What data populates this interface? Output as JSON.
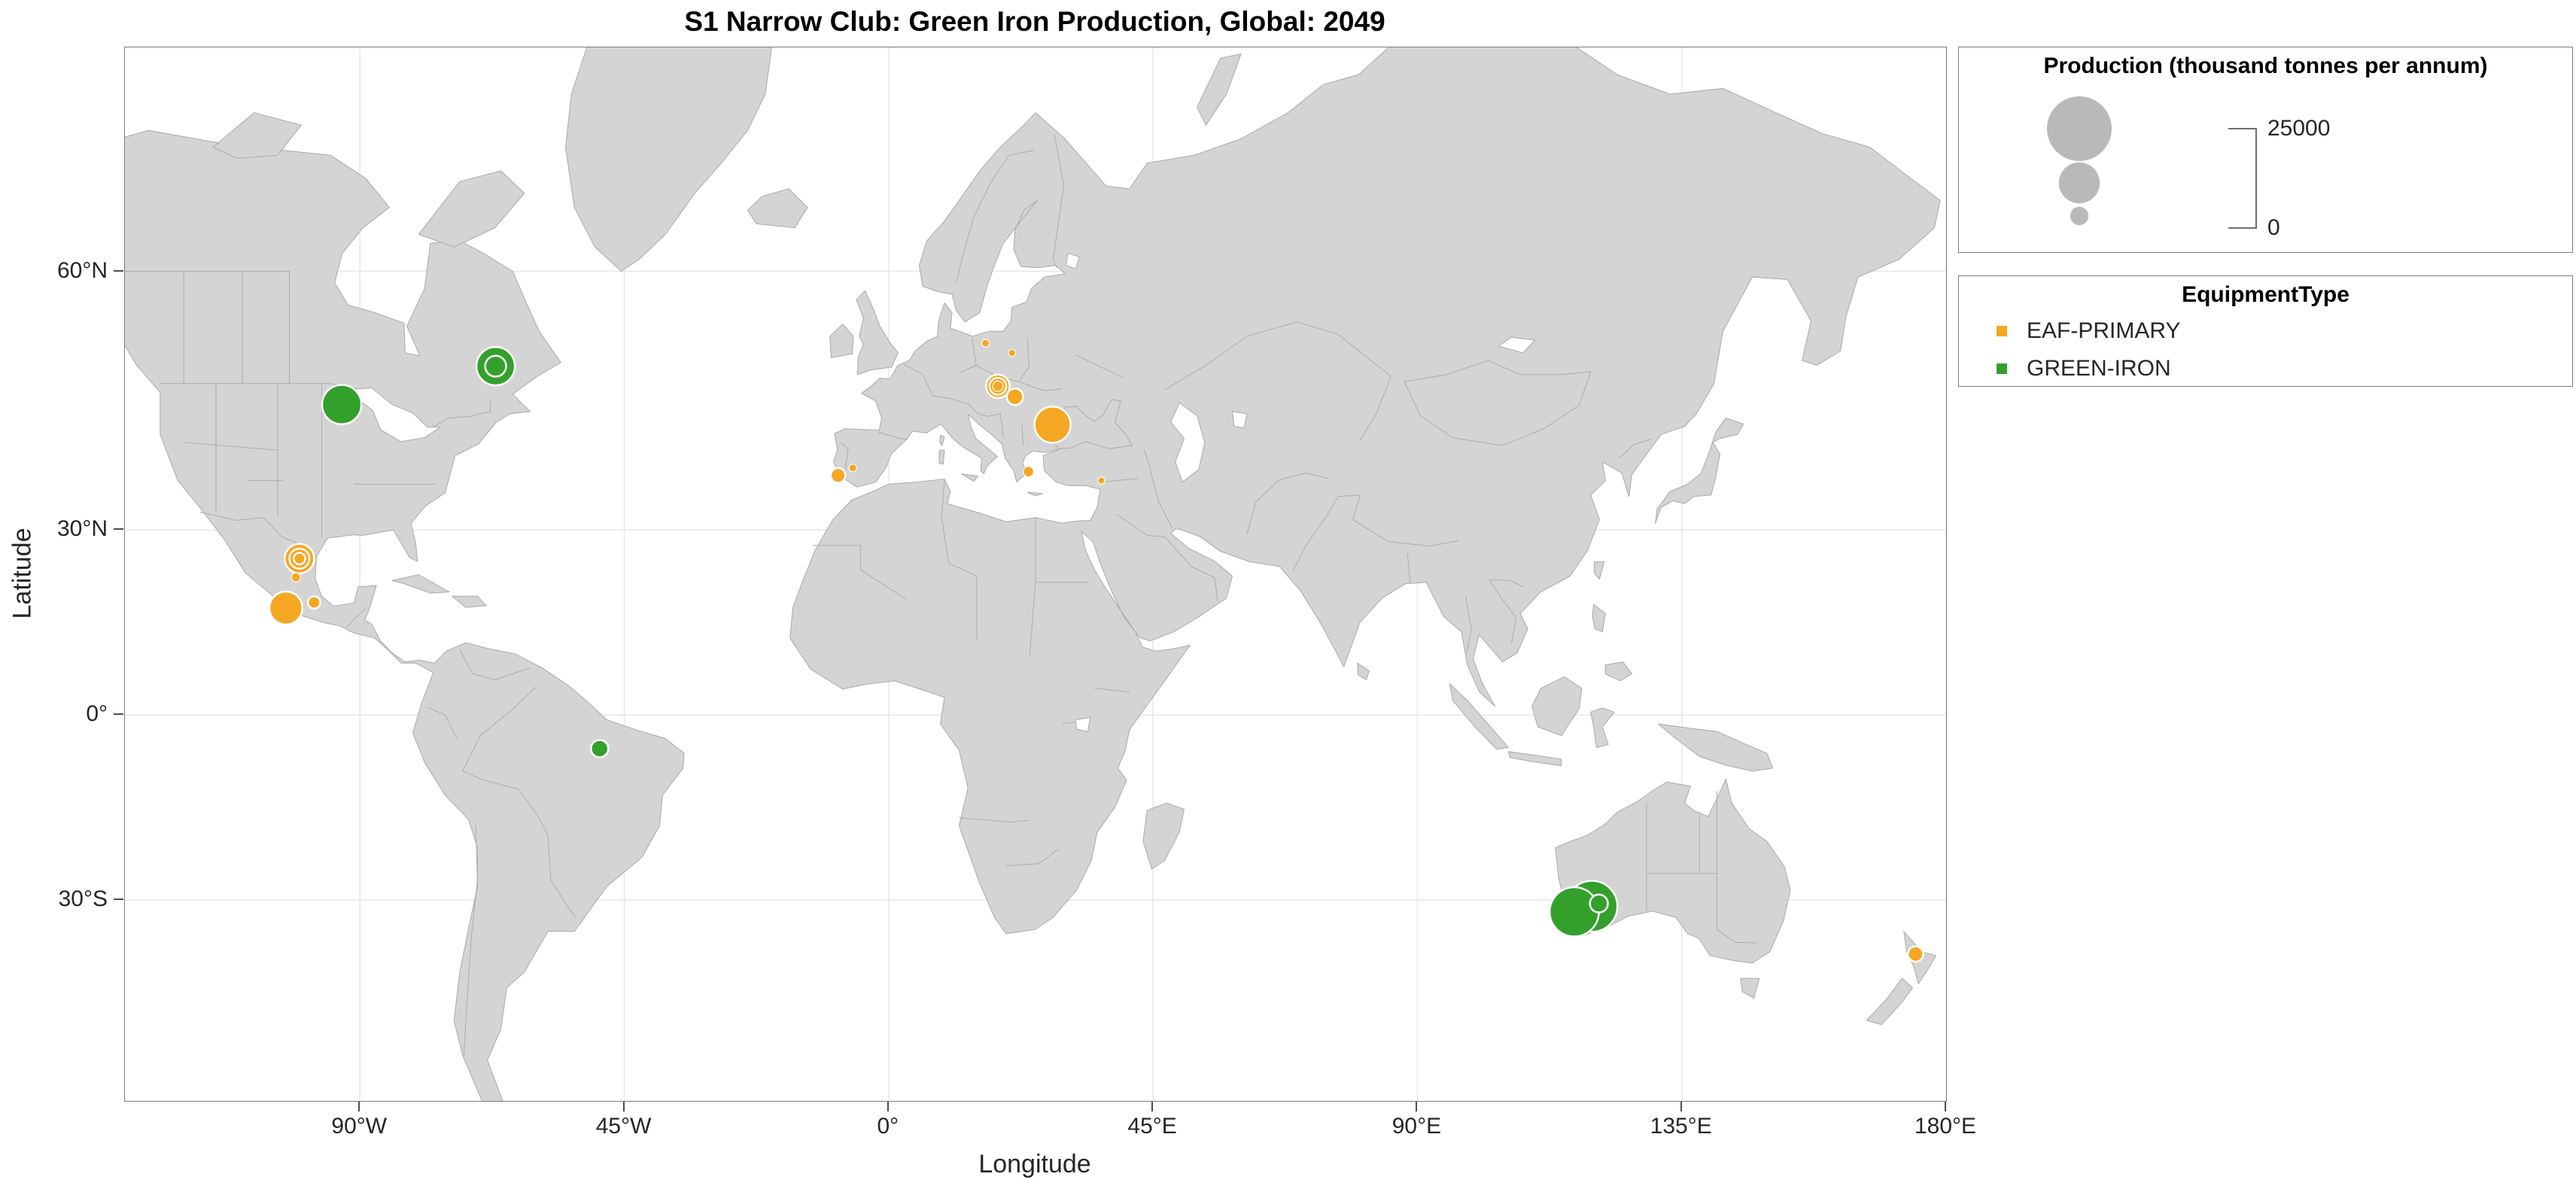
{
  "chart_data": {
    "type": "scatter",
    "subtype": "geo-bubble-map",
    "projection": "mercator",
    "title": "S1 Narrow Club: Green Iron Production, Global: 2049",
    "xlabel": "Longitude",
    "ylabel": "Latitude",
    "xlim": [
      -130,
      180
    ],
    "ylim": [
      -54.7,
      74.3
    ],
    "grid": true,
    "legend_position": "outside-right",
    "x_ticks": [
      {
        "label": "90°W",
        "value": -90
      },
      {
        "label": "45°W",
        "value": -45
      },
      {
        "label": "0°",
        "value": 0
      },
      {
        "label": "45°E",
        "value": 45
      },
      {
        "label": "90°E",
        "value": 90
      },
      {
        "label": "135°E",
        "value": 135
      },
      {
        "label": "180°E",
        "value": 180
      }
    ],
    "y_ticks": [
      {
        "label": "60°N",
        "value": 60
      },
      {
        "label": "30°N",
        "value": 30
      },
      {
        "label": "0°",
        "value": 0
      },
      {
        "label": "30°S",
        "value": -30
      }
    ],
    "size_legend": {
      "title": "Production (thousand tonnes per annum)",
      "max_value": 25000,
      "sample_values": [
        25000,
        10000,
        2000
      ],
      "labels": [
        "25000",
        "0"
      ]
    },
    "type_legend": {
      "title": "EquipmentType"
    },
    "style": {
      "land_color": "#d4d4d4",
      "coast_color": "#a9a9a9",
      "border_color": "#ababab",
      "ocean_color": "#ffffff",
      "grid_color": "#e7e7e7",
      "legend_bubble_color": "#b9b9b9",
      "bubble_edge_color": "#ffffff"
    },
    "series": [
      {
        "name": "EAF-PRIMARY",
        "color": "#F5A623",
        "points": [
          {
            "lon": -100.3,
            "lat": 25.7,
            "value": 5200
          },
          {
            "lon": -100.3,
            "lat": 25.7,
            "value": 2400
          },
          {
            "lon": -100.3,
            "lat": 25.7,
            "value": 800
          },
          {
            "lon": -100.9,
            "lat": 22.8,
            "value": 500
          },
          {
            "lon": -102.6,
            "lat": 17.9,
            "value": 6500
          },
          {
            "lon": -97.8,
            "lat": 18.8,
            "value": 900
          },
          {
            "lon": -8.6,
            "lat": 37.7,
            "value": 1300
          },
          {
            "lon": -6.1,
            "lat": 38.7,
            "value": 350
          },
          {
            "lon": 16.5,
            "lat": 53.3,
            "value": 350
          },
          {
            "lon": 21.0,
            "lat": 52.3,
            "value": 300
          },
          {
            "lon": 18.6,
            "lat": 48.7,
            "value": 3300
          },
          {
            "lon": 18.6,
            "lat": 48.7,
            "value": 1700
          },
          {
            "lon": 18.6,
            "lat": 48.7,
            "value": 650
          },
          {
            "lon": 21.5,
            "lat": 47.5,
            "value": 1600
          },
          {
            "lon": 27.9,
            "lat": 44.2,
            "value": 7800
          },
          {
            "lon": 23.8,
            "lat": 38.2,
            "value": 650
          },
          {
            "lon": 36.2,
            "lat": 37.0,
            "value": 300
          },
          {
            "lon": 174.8,
            "lat": -37.6,
            "value": 1400
          }
        ]
      },
      {
        "name": "GREEN-IRON",
        "color": "#33A02C",
        "points": [
          {
            "lon": -93.1,
            "lat": 46.6,
            "value": 9200
          },
          {
            "lon": -66.9,
            "lat": 50.9,
            "value": 8800
          },
          {
            "lon": -66.9,
            "lat": 50.9,
            "value": 2600
          },
          {
            "lon": -49.2,
            "lat": -5.7,
            "value": 1800
          },
          {
            "lon": 116.7,
            "lat": -31.7,
            "value": 14500
          },
          {
            "lon": 119.7,
            "lat": -30.9,
            "value": 15500
          },
          {
            "lon": 120.9,
            "lat": -30.5,
            "value": 1900
          }
        ]
      }
    ]
  }
}
